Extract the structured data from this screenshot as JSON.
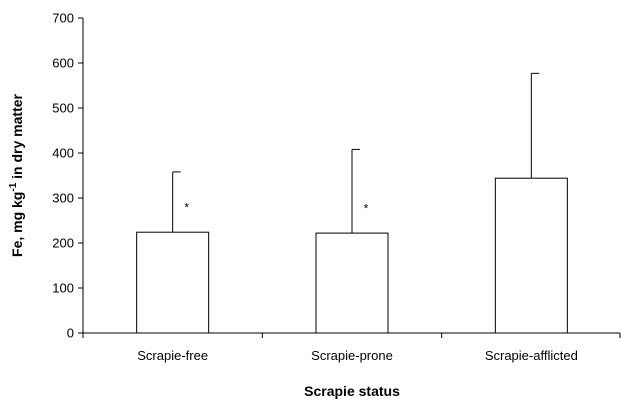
{
  "chart_data": {
    "type": "bar",
    "title": "",
    "xlabel": "Scrapie status",
    "ylabel": {
      "main": "Fe, mg kg",
      "superscript": "-1",
      "suffix": " in dry matter"
    },
    "ylim": [
      0,
      700
    ],
    "yticks": [
      0,
      100,
      200,
      300,
      400,
      500,
      600,
      700
    ],
    "grid": false,
    "legend": "none",
    "categories": [
      "Scrapie-free",
      "Scrapie-prone",
      "Scrapie-afflicted"
    ],
    "values": [
      224,
      222,
      344
    ],
    "error_upper": [
      358,
      408,
      577
    ],
    "annotations": [
      "*",
      "*",
      ""
    ],
    "bar_color": "#ffffff",
    "edge_color": "#000000"
  }
}
